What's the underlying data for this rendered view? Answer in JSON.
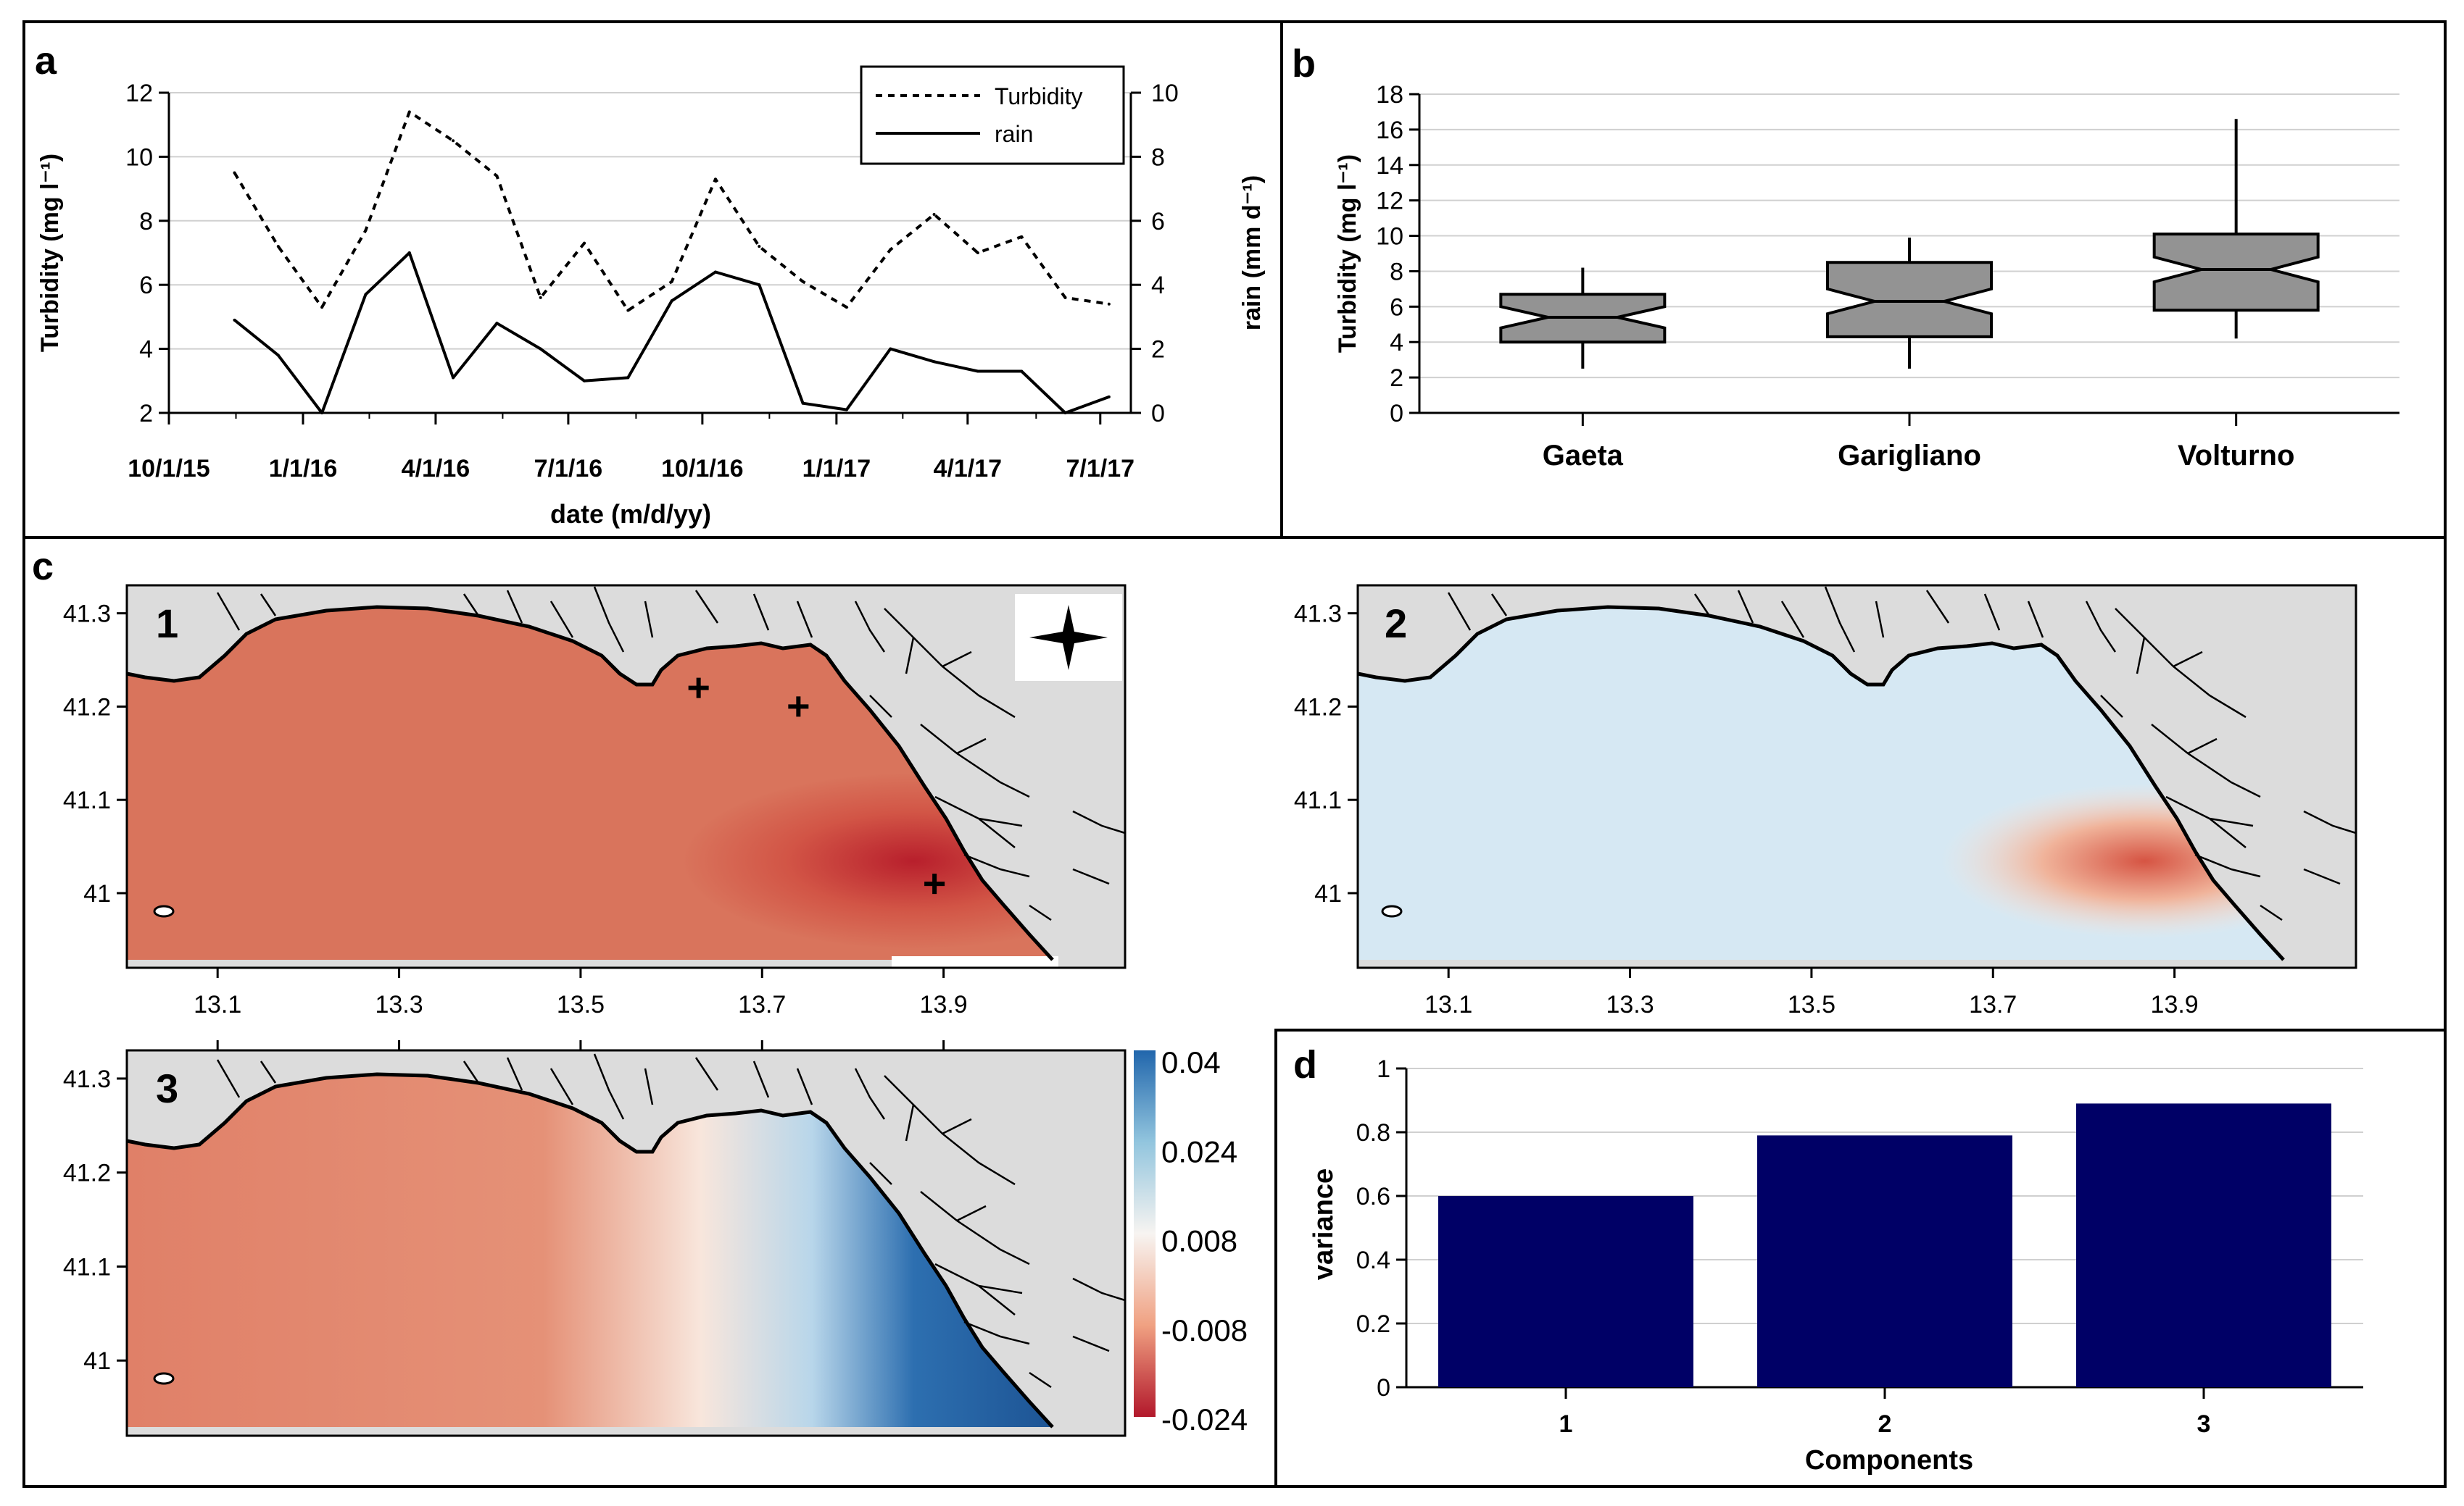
{
  "colors": {
    "map_land": "#dcdcdc",
    "bar_fill": "#000066",
    "box_fill": "#939393",
    "rdbu": [
      "#b2182b",
      "#d6604d",
      "#f4a582",
      "#fbe3d6",
      "#e2eef6",
      "#92c5de",
      "#4393c3",
      "#2166ac"
    ]
  },
  "chart_data": [
    {
      "id": "a",
      "panel_label": "a",
      "type": "line",
      "xlabel": "date (m/d/yy)",
      "ylabel_left": "Turbidity (mg l⁻¹)",
      "ylabel_right": "rain (mm d⁻¹)",
      "xlim": [
        0,
        660
      ],
      "ylim_left": [
        2,
        12
      ],
      "ylim_right": [
        0,
        10
      ],
      "xticks": [
        0,
        92,
        183,
        274,
        366,
        458,
        548,
        639
      ],
      "xtick_labels": [
        "10/1/15",
        "1/1/16",
        "4/1/16",
        "7/1/16",
        "10/1/16",
        "1/1/17",
        "4/1/17",
        "7/1/17"
      ],
      "yticks_left": [
        "2",
        "4",
        "6",
        "8",
        "10",
        "12"
      ],
      "yticks_right": [
        "0",
        "2",
        "4",
        "6",
        "8",
        "10"
      ],
      "legend": [
        "Turbidity",
        "rain"
      ],
      "series": [
        {
          "name": "Turbidity",
          "axis": "left",
          "style": "dotted",
          "x": [
            45,
            75,
            105,
            135,
            165,
            195,
            225,
            255,
            285,
            315,
            345,
            375,
            405,
            435,
            465,
            495,
            525,
            555,
            585,
            615,
            645
          ],
          "y": [
            9.5,
            7.2,
            5.3,
            7.7,
            11.4,
            10.5,
            9.4,
            5.6,
            7.3,
            5.2,
            6.1,
            9.3,
            7.2,
            6.1,
            5.3,
            7.1,
            8.2,
            7.0,
            7.5,
            5.6,
            5.4
          ]
        },
        {
          "name": "rain",
          "axis": "right",
          "style": "solid",
          "x": [
            45,
            75,
            105,
            135,
            165,
            195,
            225,
            255,
            285,
            315,
            345,
            375,
            405,
            435,
            465,
            495,
            525,
            555,
            585,
            615,
            645
          ],
          "y": [
            2.9,
            1.8,
            0.0,
            3.7,
            5.0,
            1.1,
            2.8,
            2.0,
            1.0,
            1.1,
            3.5,
            4.4,
            4.0,
            0.3,
            0.1,
            2.0,
            1.6,
            1.3,
            1.3,
            0.0,
            0.5
          ]
        }
      ]
    },
    {
      "id": "b",
      "panel_label": "b",
      "type": "box",
      "ylabel": "Turbidity (mg l⁻¹)",
      "ylim": [
        0,
        18
      ],
      "yticks": [
        "0",
        "2",
        "4",
        "6",
        "8",
        "10",
        "12",
        "14",
        "16",
        "18"
      ],
      "categories": [
        "Gaeta",
        "Garigliano",
        "Volturno"
      ],
      "boxes": [
        {
          "min": 2.5,
          "q1": 4.0,
          "notch_lo": 4.8,
          "median": 5.4,
          "notch_hi": 6.0,
          "q3": 6.7,
          "max": 8.2
        },
        {
          "min": 2.5,
          "q1": 4.3,
          "notch_lo": 5.6,
          "median": 6.3,
          "notch_hi": 7.0,
          "q3": 8.5,
          "max": 9.9
        },
        {
          "min": 4.2,
          "q1": 5.8,
          "notch_lo": 7.4,
          "median": 8.1,
          "notch_hi": 8.8,
          "q3": 10.1,
          "max": 16.6
        }
      ]
    },
    {
      "id": "c",
      "panel_label": "c",
      "type": "heatmap",
      "description_components": [
        "1",
        "2",
        "3"
      ],
      "xlim": [
        13.0,
        14.1
      ],
      "ylim": [
        40.92,
        41.33
      ],
      "xticks": [
        13.1,
        13.3,
        13.5,
        13.7,
        13.9
      ],
      "xtick_labels": [
        "13.1",
        "13.3",
        "13.5",
        "13.7",
        "13.9"
      ],
      "yticks": [
        41.0,
        41.1,
        41.2,
        41.3
      ],
      "ytick_labels": [
        "41",
        "41.1",
        "41.2",
        "41.3"
      ],
      "colorbar_labels": [
        "0.04",
        "0.024",
        "0.008",
        "-0.008",
        "-0.024"
      ],
      "colorbar_range": [
        -0.024,
        0.04
      ],
      "station_markers": [
        [
          13.63,
          41.22
        ],
        [
          13.74,
          41.2
        ],
        [
          13.89,
          41.01
        ]
      ]
    },
    {
      "id": "d",
      "panel_label": "d",
      "type": "bar",
      "xlabel": "Components",
      "ylabel": "variance",
      "ylim": [
        0,
        1
      ],
      "yticks": [
        "0",
        "0.2",
        "0.4",
        "0.6",
        "0.8",
        "1"
      ],
      "categories": [
        "1",
        "2",
        "3"
      ],
      "values": [
        0.6,
        0.79,
        0.89
      ]
    }
  ]
}
